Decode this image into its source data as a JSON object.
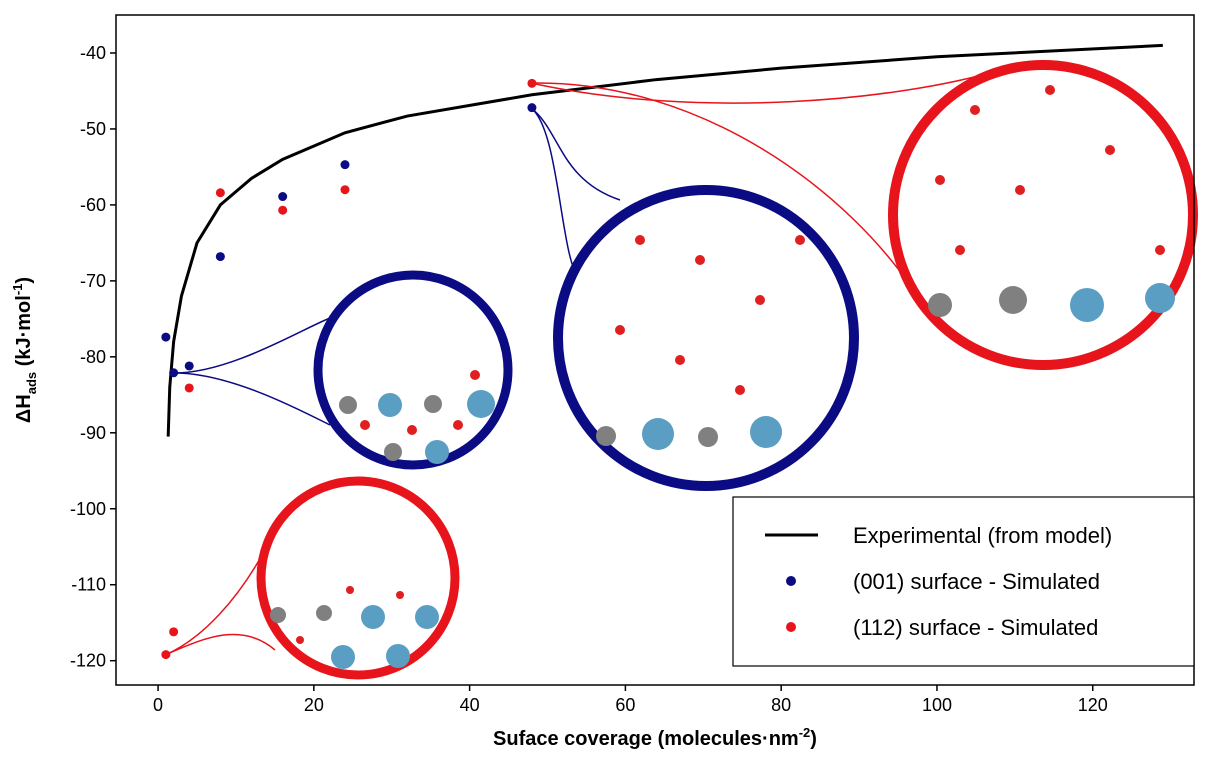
{
  "chart_data": {
    "type": "scatter",
    "x_label": {
      "text": "Suface coverage (molecules·nm",
      "sup": "-2",
      "close": ")"
    },
    "y_label": {
      "text": "ΔH",
      "sub": "ads",
      "unit": " (kJ·mol",
      "sup": "-1",
      "close": ")"
    },
    "xlim": [
      -5.4,
      133
    ],
    "xticks": [
      0,
      20,
      40,
      60,
      80,
      100,
      120
    ],
    "ylim": [
      -123.2,
      -35
    ],
    "yticks": [
      -40,
      -50,
      -60,
      -70,
      -80,
      -90,
      -100,
      -110,
      -120
    ],
    "legend": "lower right",
    "series": [
      {
        "name": "Experimental (from model)",
        "type": "line",
        "color": "#000000",
        "x": [
          1.3,
          1.5,
          2,
          3,
          5,
          8,
          12,
          16,
          24,
          32,
          48,
          64,
          80,
          100,
          129
        ],
        "values": [
          -90.5,
          -84,
          -78,
          -72,
          -65,
          -60,
          -56.5,
          -54,
          -50.5,
          -48.3,
          -45.5,
          -43.5,
          -42,
          -40.5,
          -39
        ]
      },
      {
        "name": "(001) surface - Simulated",
        "type": "scatter",
        "color": "#0b0b84",
        "x": [
          1,
          2,
          4,
          8,
          16,
          24,
          48
        ],
        "values": [
          -77.4,
          -82.1,
          -81.2,
          -66.8,
          -58.9,
          -54.7,
          -47.2
        ]
      },
      {
        "name": "(112) surface - Simulated",
        "type": "scatter",
        "color": "#e8141c",
        "x": [
          1,
          2,
          4,
          8,
          16,
          24,
          48
        ],
        "values": [
          -119.2,
          -116.2,
          -84.1,
          -58.4,
          -60.7,
          -58,
          -44
        ]
      }
    ]
  }
}
